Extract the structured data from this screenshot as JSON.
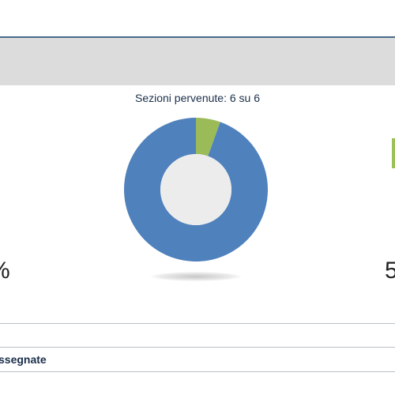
{
  "sections": {
    "label": "Sezioni pervenute: 6 su 6"
  },
  "left_stat": {
    "text": "%"
  },
  "right_stat": {
    "text": "5"
  },
  "footer": {
    "assigned_label": "ssegnate"
  },
  "colors": {
    "primary_blue": "#4f81bd",
    "accent_green": "#9bbb59",
    "donut_hole": "#ececec",
    "header_gray": "#dcdcdc",
    "text_navy": "#1a2e4a"
  },
  "chart_data": {
    "type": "pie",
    "style": "donut",
    "slices": [
      {
        "value": 94.5,
        "color": "#4f81bd"
      },
      {
        "value": 5.5,
        "color": "#9bbb59"
      }
    ],
    "title": ""
  }
}
